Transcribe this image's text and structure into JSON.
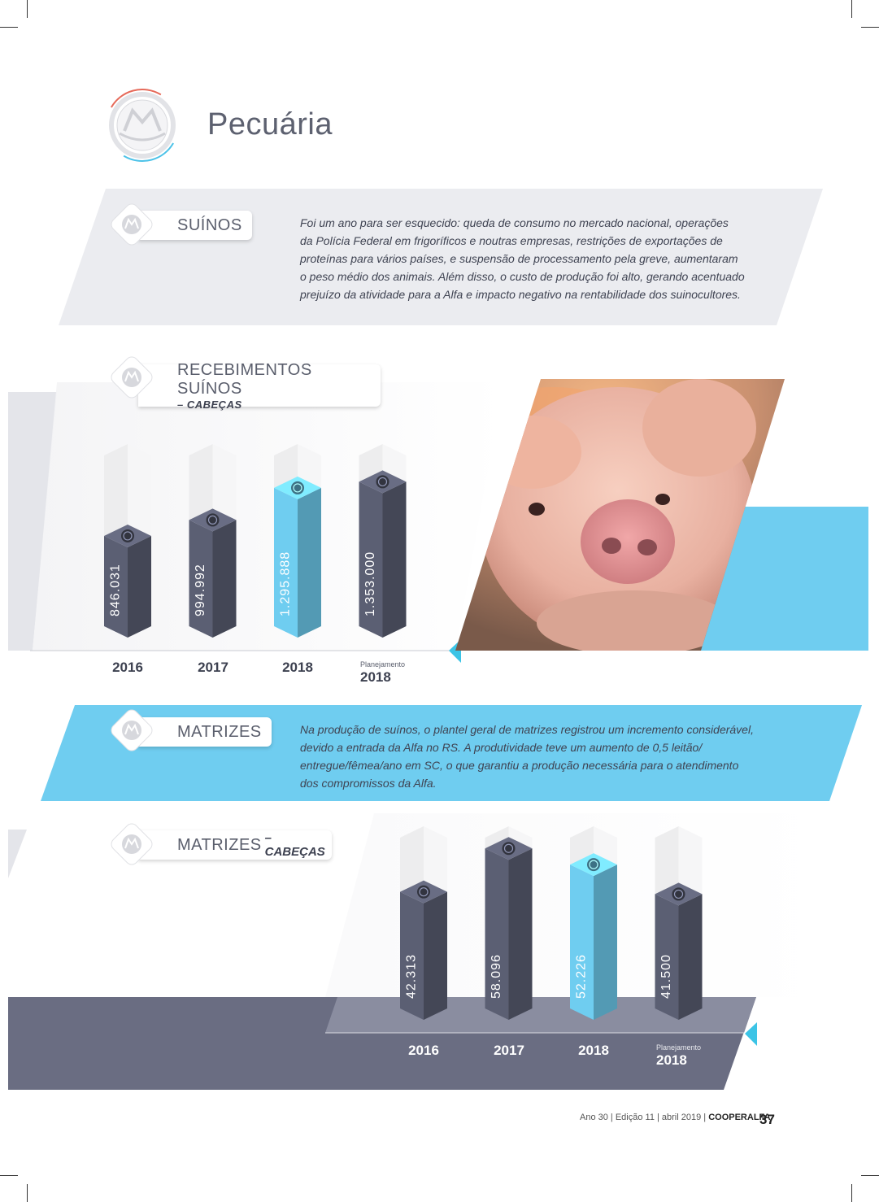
{
  "page": {
    "title": "Pecuária",
    "footer": {
      "issue": "Ano 30 | Edição 11 | abril 2019 |",
      "brand": "COOPERALFA",
      "page_number": "37"
    }
  },
  "sections": {
    "suinos": {
      "label": "SUÍNOS",
      "text_lines": [
        "Foi um ano para ser esquecido: queda de consumo no mercado nacional, operações",
        "da Polícia Federal em frigoríficos e noutras empresas, restrições de exportações de",
        "proteínas para vários países, e suspensão de processamento pela greve, aumentaram",
        "o peso médio dos animais. Além disso, o custo de produção foi alto, gerando acentuado",
        "prejuízo da atividade para a Alfa e impacto negativo na rentabilidade dos suinocultores."
      ]
    },
    "matrizes": {
      "label": "MATRIZES",
      "text_lines": [
        "Na produção de suínos, o plantel geral de matrizes registrou um incremento considerável,",
        "devido a entrada da Alfa no RS. A produtividade teve um aumento de 0,5 leitão/",
        "entregue/fêmea/ano em SC, o que garantiu a produção necessária para o atendimento",
        "dos compromissos da Alfa."
      ]
    }
  },
  "chart_data": [
    {
      "type": "bar",
      "title": "RECEBIMENTOS SUÍNOS",
      "subtitle": "– CABEÇAS",
      "categories": [
        "2016",
        "2017",
        "2018",
        "Planejamento 2018"
      ],
      "category_main": [
        "2016",
        "2017",
        "2018",
        "2018"
      ],
      "category_note": [
        "",
        "",
        "",
        "Planejamento"
      ],
      "values": [
        846031,
        994992,
        1295888,
        1353000
      ],
      "value_labels": [
        "846.031",
        "994.992",
        "1.295.888",
        "1.353.000"
      ],
      "highlight_index": 2,
      "ylim": [
        0,
        1600000
      ],
      "colors": {
        "bar": "#5b5f73",
        "highlight": "#6fcdf0",
        "track": "#ececed"
      }
    },
    {
      "type": "bar",
      "title": "MATRIZES",
      "subtitle": "– CABEÇAS",
      "categories": [
        "2016",
        "2017",
        "2018",
        "Planejamento 2018"
      ],
      "category_main": [
        "2016",
        "2017",
        "2018",
        "2018"
      ],
      "category_note": [
        "",
        "",
        "",
        "Planejamento"
      ],
      "values": [
        42313,
        58096,
        52226,
        41500
      ],
      "value_labels": [
        "42.313",
        "58.096",
        "52.226",
        "41.500"
      ],
      "highlight_index": 2,
      "ylim": [
        0,
        62000
      ],
      "colors": {
        "bar": "#5b5f73",
        "highlight": "#6fcdf0",
        "track": "#ececed"
      }
    }
  ]
}
